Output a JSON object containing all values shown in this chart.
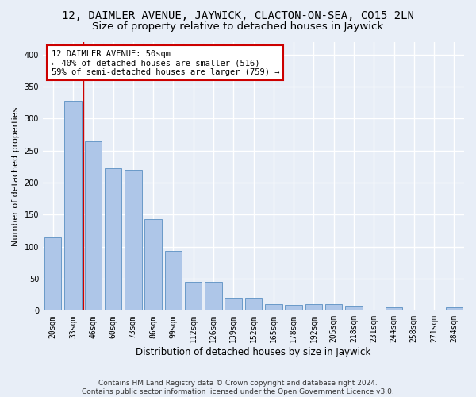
{
  "title": "12, DAIMLER AVENUE, JAYWICK, CLACTON-ON-SEA, CO15 2LN",
  "subtitle": "Size of property relative to detached houses in Jaywick",
  "xlabel": "Distribution of detached houses by size in Jaywick",
  "ylabel": "Number of detached properties",
  "categories": [
    "20sqm",
    "33sqm",
    "46sqm",
    "60sqm",
    "73sqm",
    "86sqm",
    "99sqm",
    "112sqm",
    "126sqm",
    "139sqm",
    "152sqm",
    "165sqm",
    "178sqm",
    "192sqm",
    "205sqm",
    "218sqm",
    "231sqm",
    "244sqm",
    "258sqm",
    "271sqm",
    "284sqm"
  ],
  "values": [
    115,
    328,
    265,
    222,
    220,
    143,
    93,
    45,
    45,
    20,
    20,
    10,
    9,
    10,
    10,
    7,
    0,
    5,
    0,
    0,
    5
  ],
  "bar_color": "#aec6e8",
  "bar_edge_color": "#5a8fc2",
  "bg_color": "#e8eef7",
  "grid_color": "#ffffff",
  "annotation_line1": "12 DAIMLER AVENUE: 50sqm",
  "annotation_line2": "← 40% of detached houses are smaller (516)",
  "annotation_line3": "59% of semi-detached houses are larger (759) →",
  "vline_x_index": 1.5,
  "annotation_box_color": "#ffffff",
  "annotation_box_edge": "#cc0000",
  "ylim": [
    0,
    420
  ],
  "yticks": [
    0,
    50,
    100,
    150,
    200,
    250,
    300,
    350,
    400
  ],
  "footer": "Contains HM Land Registry data © Crown copyright and database right 2024.\nContains public sector information licensed under the Open Government Licence v3.0.",
  "title_fontsize": 10,
  "subtitle_fontsize": 9.5,
  "xlabel_fontsize": 8.5,
  "ylabel_fontsize": 8,
  "tick_fontsize": 7,
  "annotation_fontsize": 7.5,
  "footer_fontsize": 6.5
}
